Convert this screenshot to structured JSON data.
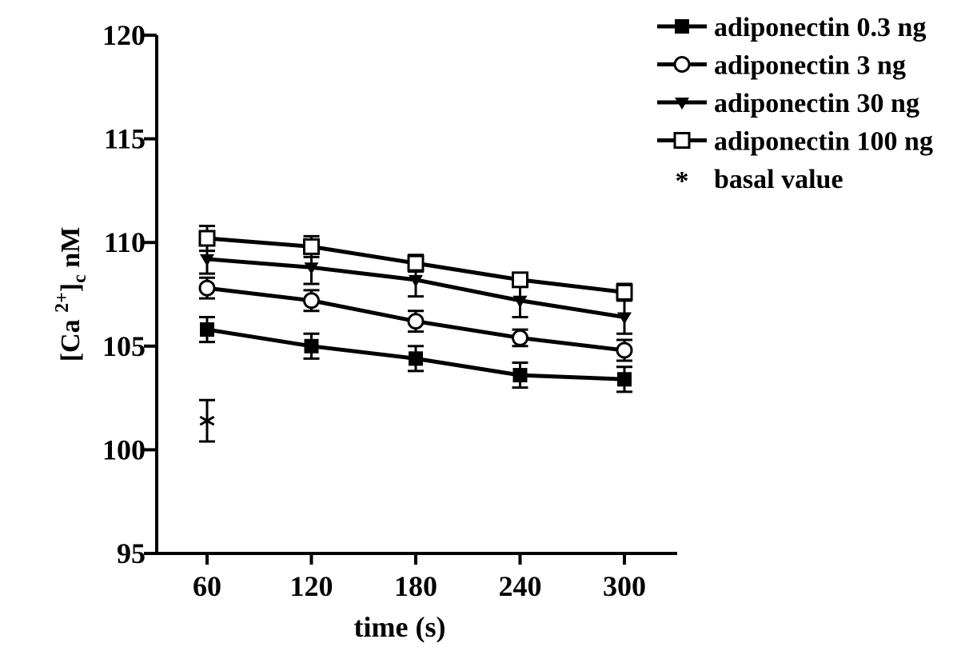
{
  "chart_data": {
    "type": "line",
    "xlabel": "time (s)",
    "ylabel_main": "[Ca ",
    "ylabel_sup": "2+",
    "ylabel_close": "]",
    "ylabel_sub": "c",
    "ylabel_unit": " nM",
    "ylim": [
      95,
      120
    ],
    "yticks": [
      95,
      100,
      105,
      110,
      115,
      120
    ],
    "x": [
      60,
      120,
      180,
      240,
      300
    ],
    "xticks": [
      "60",
      "120",
      "180",
      "240",
      "300"
    ],
    "grid": false,
    "legend_position": "top-right",
    "series": [
      {
        "name": "adiponectin 0.3 ng",
        "marker": "filled-square",
        "values": [
          105.8,
          105.0,
          104.4,
          103.6,
          103.4
        ],
        "errors": [
          0.6,
          0.6,
          0.6,
          0.6,
          0.6
        ]
      },
      {
        "name": "adiponectin 3 ng",
        "marker": "open-circle",
        "values": [
          107.8,
          107.2,
          106.2,
          105.4,
          104.8
        ],
        "errors": [
          0.5,
          0.5,
          0.5,
          0.4,
          0.5
        ]
      },
      {
        "name": "adiponectin 30 ng",
        "marker": "filled-triangle-down",
        "values": [
          109.2,
          108.8,
          108.2,
          107.2,
          106.4
        ],
        "errors": [
          0.7,
          0.8,
          0.8,
          0.8,
          0.8
        ]
      },
      {
        "name": "adiponectin 100 ng",
        "marker": "open-square",
        "values": [
          110.2,
          109.8,
          109.0,
          108.2,
          107.6
        ],
        "errors": [
          0.6,
          0.5,
          0.4,
          0.3,
          0.4
        ]
      }
    ],
    "basal": {
      "name": "basal value",
      "symbol": "*",
      "x": 60,
      "value": 101.4,
      "error": 1.0
    }
  }
}
